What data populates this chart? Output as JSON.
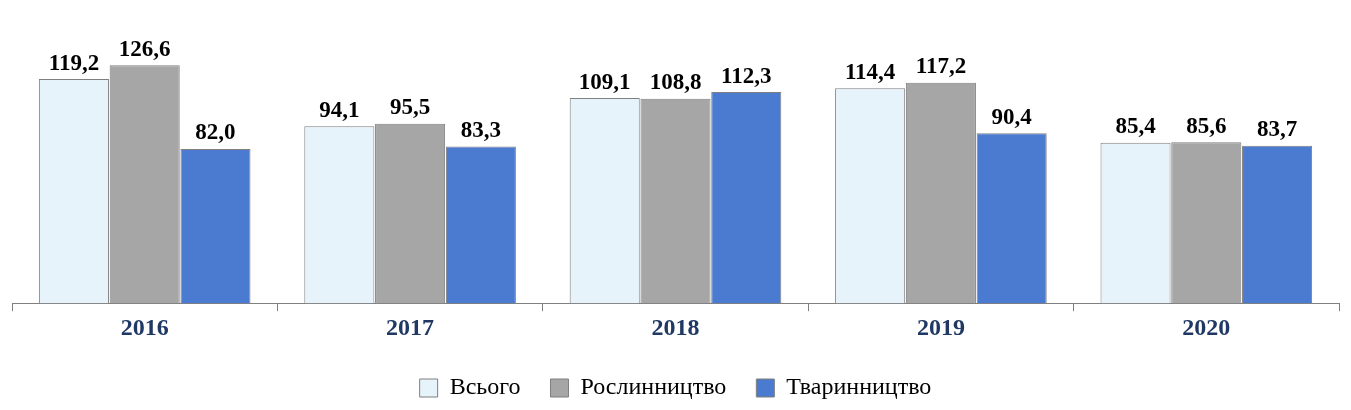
{
  "chart_data": {
    "type": "bar",
    "categories": [
      "2016",
      "2017",
      "2018",
      "2019",
      "2020"
    ],
    "series": [
      {
        "name": "Всього",
        "color": "#e6f3fb",
        "values": [
          119.2,
          94.1,
          109.1,
          114.4,
          85.4
        ],
        "value_labels": [
          "119,2",
          "94,1",
          "109,1",
          "114,4",
          "85,4"
        ]
      },
      {
        "name": "Рослинництво",
        "color": "#a6a6a6",
        "values": [
          126.6,
          95.5,
          108.8,
          117.2,
          85.6
        ],
        "value_labels": [
          "126,6",
          "95,5",
          "108,8",
          "117,2",
          "85,6"
        ]
      },
      {
        "name": "Тваринництво",
        "color": "#4a7bd0",
        "values": [
          82.0,
          83.3,
          112.3,
          90.4,
          83.7
        ],
        "value_labels": [
          "82,0",
          "83,3",
          "112,3",
          "90,4",
          "83,7"
        ]
      }
    ],
    "legend": "bottom"
  }
}
